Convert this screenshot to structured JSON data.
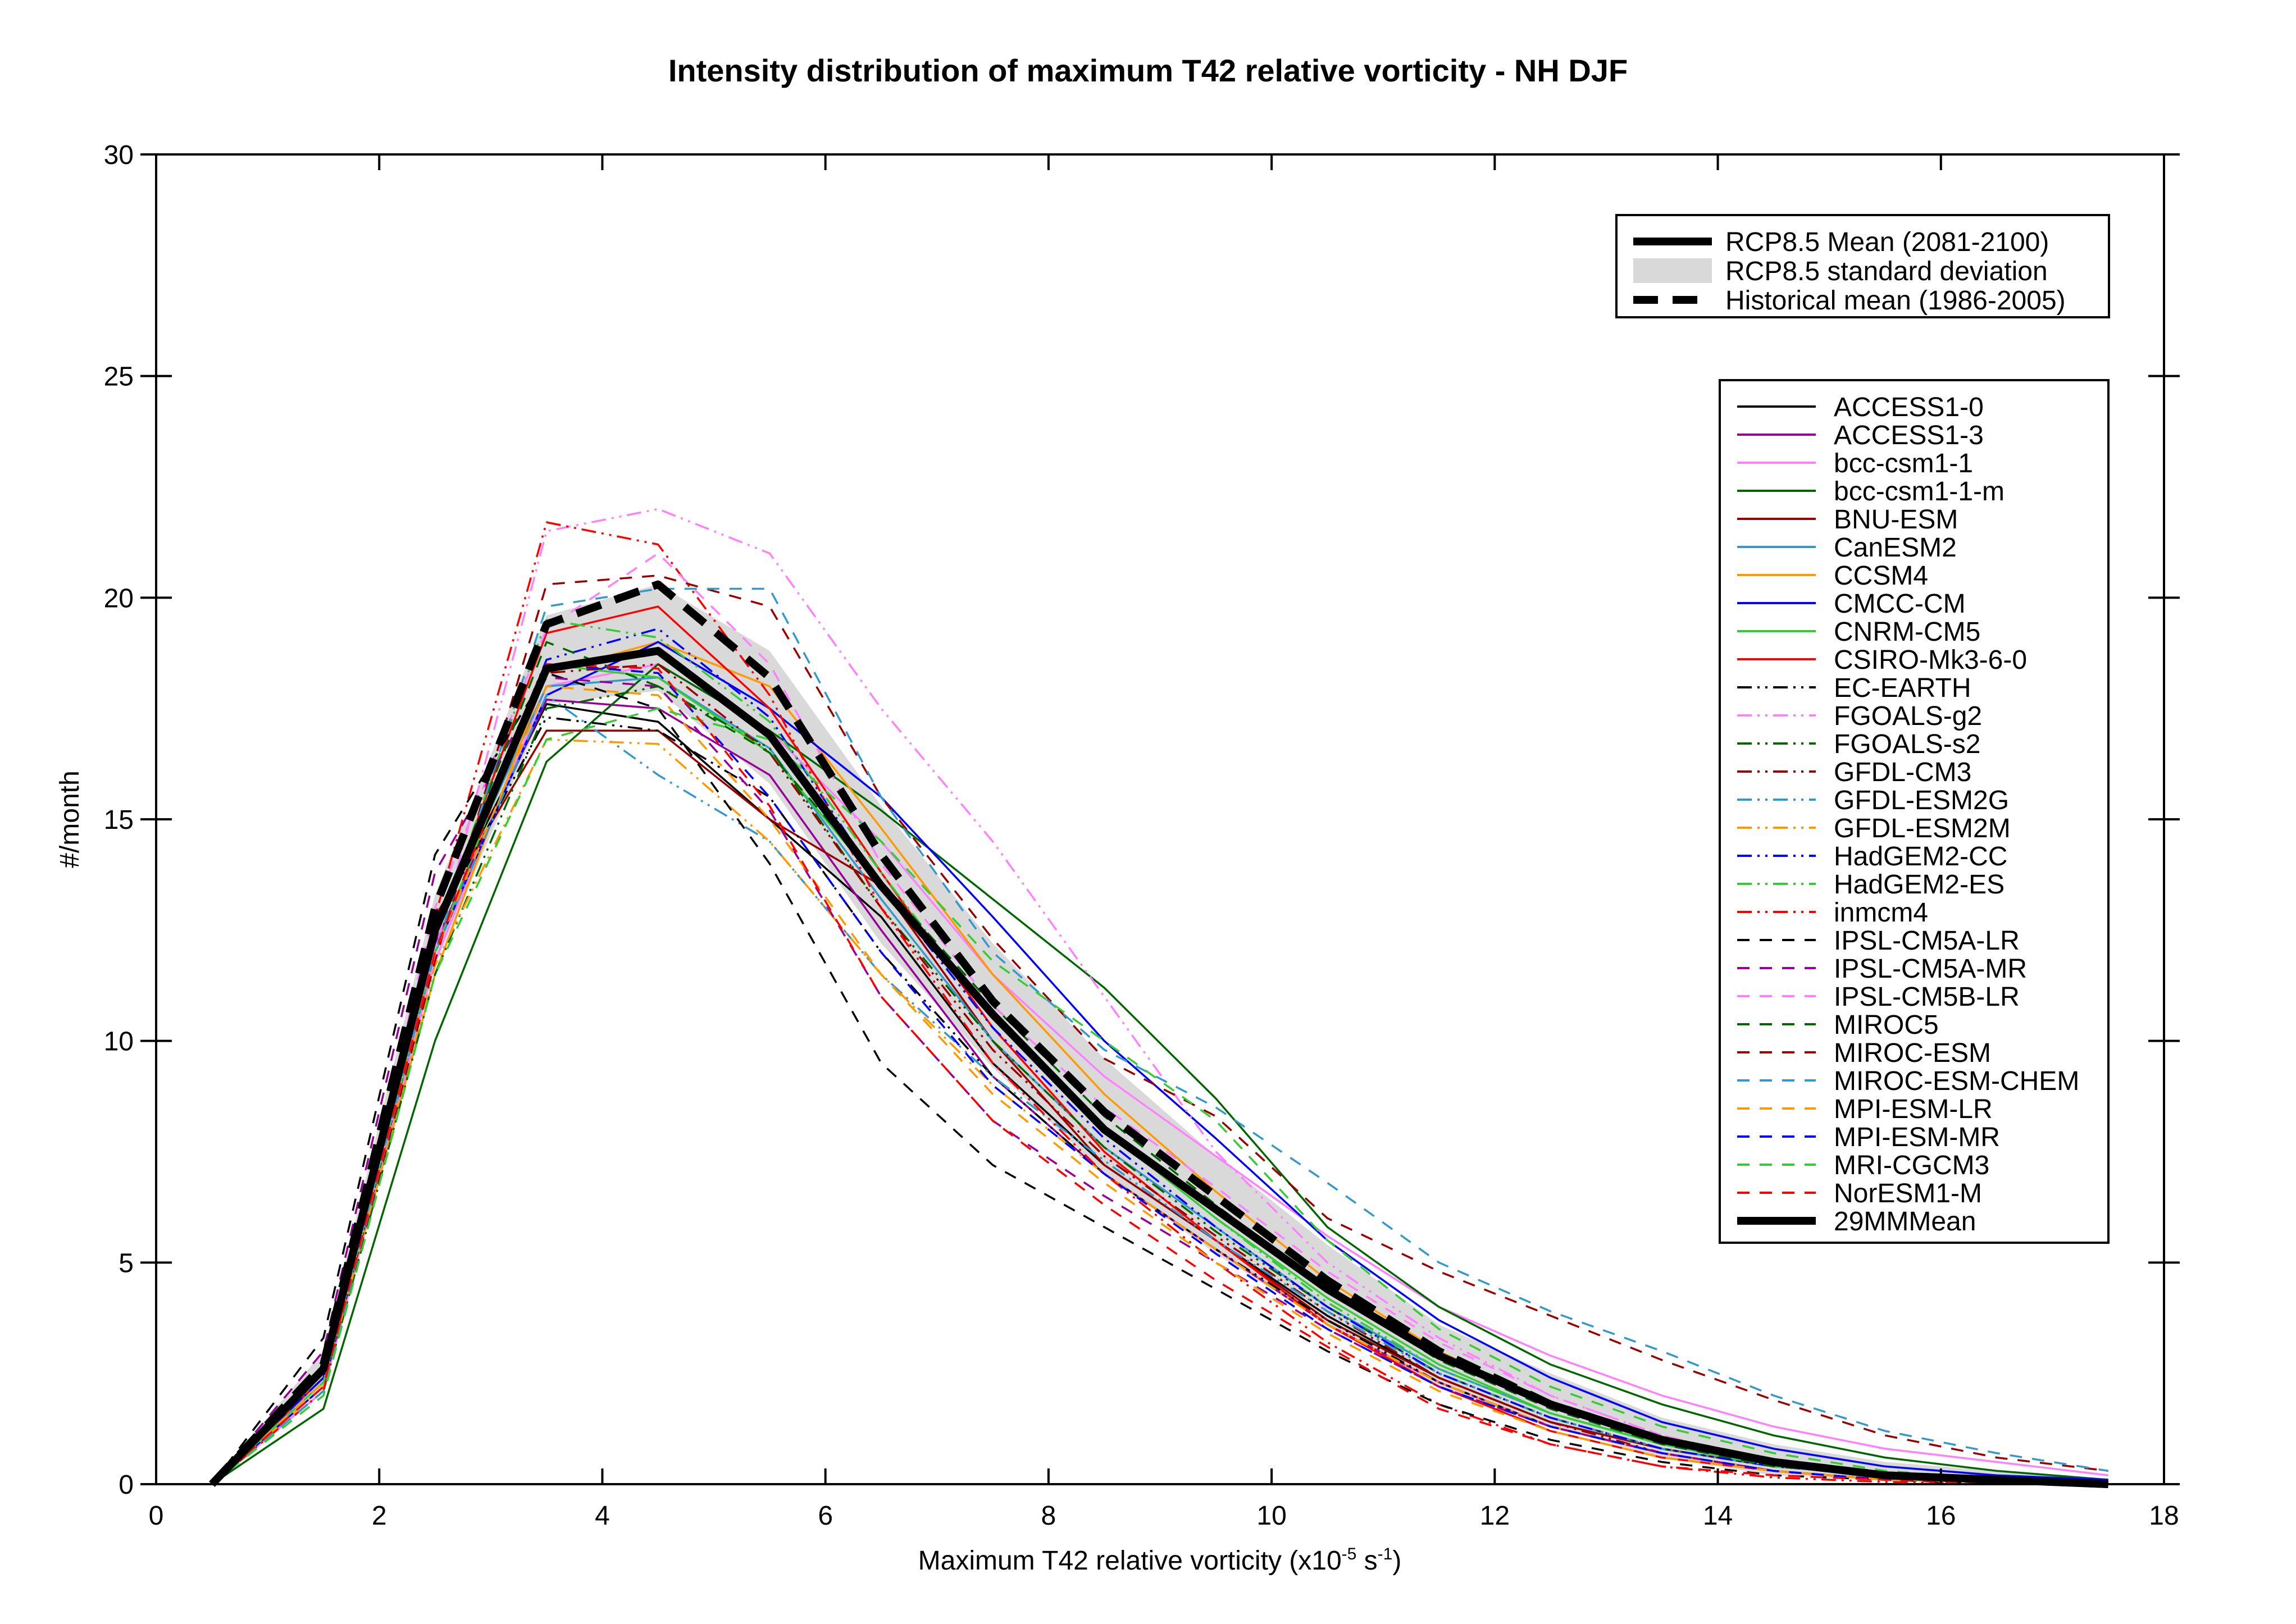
{
  "chart_data": {
    "type": "line",
    "title": "Intensity distribution of maximum T42 relative vorticity - NH DJF",
    "xlabel": "Maximum T42 relative vorticity (x10",
    "xlabel_exp": "-5",
    "xlabel_unit": "s",
    "xlabel_unit_exp": "-1",
    "xlabel_close": ")",
    "ylabel": "#/month",
    "xlim": [
      0,
      18
    ],
    "ylim": [
      0,
      30
    ],
    "xticks": [
      0,
      2,
      4,
      6,
      8,
      10,
      12,
      14,
      16,
      18
    ],
    "yticks": [
      0,
      5,
      10,
      15,
      20,
      25,
      30
    ],
    "grid": false,
    "x": [
      0.5,
      1.5,
      2.5,
      3.5,
      4.5,
      5.5,
      6.5,
      7.5,
      8.5,
      9.5,
      10.5,
      11.5,
      12.5,
      13.5,
      14.5,
      15.5,
      16.5,
      17.5
    ],
    "summary_legend": [
      {
        "label": "RCP8.5 Mean (2081-2100)",
        "style": "thick-solid"
      },
      {
        "label": "RCP8.5 standard deviation",
        "style": "band"
      },
      {
        "label": "Historical mean (1986-2005)",
        "style": "thick-dashed"
      }
    ],
    "band": {
      "name": "RCP8.5 standard deviation",
      "color": "#d9d9d9",
      "lower": [
        0,
        2.2,
        11.7,
        17.6,
        17.9,
        15.8,
        12.2,
        9.4,
        7.0,
        5.2,
        3.6,
        2.2,
        1.3,
        0.6,
        0.2,
        0.1,
        0.05,
        0
      ],
      "upper": [
        0,
        3.0,
        13.3,
        19.6,
        20.3,
        18.8,
        15.3,
        12.2,
        9.6,
        7.4,
        5.4,
        3.6,
        2.5,
        1.5,
        0.9,
        0.5,
        0.3,
        0.1
      ]
    },
    "historical_mean": {
      "name": "Historical mean (1986-2005)",
      "color": "#000000",
      "values": [
        0,
        2.7,
        13.0,
        19.4,
        20.3,
        18.2,
        14.2,
        10.9,
        8.4,
        6.5,
        4.6,
        3.0,
        1.8,
        1.0,
        0.5,
        0.2,
        0.1,
        0
      ]
    },
    "series": [
      {
        "name": "ACCESS1-0",
        "color": "#000000",
        "dash": "solid",
        "values": [
          0,
          2.6,
          12.6,
          17.6,
          17.2,
          15.0,
          12.8,
          9.5,
          7.2,
          5.5,
          3.8,
          2.4,
          1.4,
          0.8,
          0.4,
          0.2,
          0.1,
          0
        ]
      },
      {
        "name": "ACCESS1-3",
        "color": "#990099",
        "dash": "solid",
        "values": [
          0,
          2.4,
          12.2,
          17.7,
          17.5,
          16.0,
          12.5,
          9.2,
          7.0,
          5.3,
          3.6,
          2.3,
          1.3,
          0.7,
          0.3,
          0.1,
          0.05,
          0
        ]
      },
      {
        "name": "bcc-csm1-1",
        "color": "#ff80ff",
        "dash": "solid",
        "values": [
          0,
          2.1,
          11.8,
          18.0,
          18.5,
          17.0,
          14.5,
          11.5,
          9.2,
          7.4,
          5.6,
          4.0,
          2.9,
          2.0,
          1.3,
          0.8,
          0.5,
          0.2
        ]
      },
      {
        "name": "bcc-csm1-1-m",
        "color": "#006600",
        "dash": "solid",
        "values": [
          0,
          1.7,
          10.0,
          16.3,
          18.5,
          17.0,
          15.2,
          13.2,
          11.2,
          8.7,
          5.8,
          4.0,
          2.7,
          1.8,
          1.1,
          0.6,
          0.3,
          0.1
        ]
      },
      {
        "name": "BNU-ESM",
        "color": "#990000",
        "dash": "solid",
        "values": [
          0,
          2.5,
          12.8,
          17.0,
          17.0,
          15.0,
          13.5,
          10.0,
          7.2,
          5.5,
          3.7,
          2.4,
          1.4,
          0.8,
          0.4,
          0.2,
          0.1,
          0
        ]
      },
      {
        "name": "CanESM2",
        "color": "#3399cc",
        "dash": "solid",
        "values": [
          0,
          2.5,
          12.5,
          18.0,
          18.2,
          16.6,
          13.2,
          10.0,
          7.6,
          5.8,
          4.0,
          2.6,
          1.6,
          0.9,
          0.5,
          0.2,
          0.1,
          0
        ]
      },
      {
        "name": "CCSM4",
        "color": "#ff9900",
        "dash": "solid",
        "values": [
          0,
          2.3,
          11.5,
          18.3,
          19.0,
          18.0,
          14.8,
          11.5,
          8.8,
          6.6,
          4.6,
          3.0,
          1.8,
          1.0,
          0.5,
          0.2,
          0.1,
          0
        ]
      },
      {
        "name": "CMCC-CM",
        "color": "#0000ff",
        "dash": "solid",
        "values": [
          0,
          2.2,
          12.0,
          17.8,
          19.0,
          17.5,
          15.5,
          12.8,
          10.0,
          7.8,
          5.5,
          3.7,
          2.4,
          1.4,
          0.8,
          0.4,
          0.2,
          0.1
        ]
      },
      {
        "name": "CNRM-CM5",
        "color": "#33cc33",
        "dash": "solid",
        "values": [
          0,
          2.3,
          12.0,
          18.5,
          18.2,
          16.5,
          13.5,
          10.5,
          8.0,
          6.0,
          4.2,
          2.7,
          1.6,
          0.9,
          0.4,
          0.2,
          0.1,
          0
        ]
      },
      {
        "name": "CSIRO-Mk3-6-0",
        "color": "#ff0000",
        "dash": "solid",
        "values": [
          0,
          2.4,
          12.4,
          19.2,
          19.8,
          17.5,
          13.8,
          10.3,
          7.5,
          5.5,
          3.6,
          2.2,
          1.2,
          0.6,
          0.3,
          0.1,
          0.05,
          0
        ]
      },
      {
        "name": "EC-EARTH",
        "color": "#000000",
        "dash": "dashdotdot",
        "values": [
          0,
          2.7,
          12.6,
          17.3,
          17.0,
          15.5,
          12.0,
          9.2,
          7.0,
          5.3,
          3.7,
          2.3,
          1.3,
          0.7,
          0.3,
          0.1,
          0.05,
          0
        ]
      },
      {
        "name": "FGOALS-g2",
        "color": "#ff80ff",
        "dash": "dashdotdot",
        "values": [
          0,
          2.2,
          12.0,
          21.5,
          22.0,
          21.0,
          17.5,
          14.5,
          11.0,
          7.5,
          5.0,
          3.3,
          2.0,
          1.1,
          0.5,
          0.2,
          0.1,
          0
        ]
      },
      {
        "name": "FGOALS-s2",
        "color": "#006600",
        "dash": "dashdotdot",
        "values": [
          0,
          2.1,
          11.5,
          17.5,
          18.0,
          16.6,
          13.0,
          10.0,
          7.6,
          5.7,
          4.0,
          2.5,
          1.5,
          0.8,
          0.4,
          0.2,
          0.1,
          0
        ]
      },
      {
        "name": "GFDL-CM3",
        "color": "#990000",
        "dash": "dashdotdot",
        "values": [
          0,
          2.5,
          12.4,
          18.3,
          18.5,
          16.5,
          13.0,
          9.8,
          7.4,
          5.6,
          3.9,
          2.4,
          1.4,
          0.7,
          0.3,
          0.1,
          0.05,
          0
        ]
      },
      {
        "name": "GFDL-ESM2G",
        "color": "#3399cc",
        "dash": "dashdotdot",
        "values": [
          0,
          2.3,
          12.0,
          17.8,
          16.0,
          14.5,
          11.5,
          9.2,
          7.3,
          5.5,
          3.9,
          2.5,
          1.5,
          0.8,
          0.4,
          0.2,
          0.1,
          0
        ]
      },
      {
        "name": "GFDL-ESM2M",
        "color": "#ff9900",
        "dash": "dashdotdot",
        "values": [
          0,
          2.2,
          11.7,
          16.8,
          16.7,
          14.5,
          11.5,
          9.0,
          7.0,
          5.3,
          3.6,
          2.3,
          1.3,
          0.7,
          0.3,
          0.1,
          0.05,
          0
        ]
      },
      {
        "name": "HadGEM2-CC",
        "color": "#0000ff",
        "dash": "dashdotdot",
        "values": [
          0,
          2.4,
          12.5,
          18.6,
          19.3,
          17.3,
          13.5,
          10.3,
          7.8,
          5.8,
          4.0,
          2.5,
          1.5,
          0.8,
          0.4,
          0.2,
          0.1,
          0
        ]
      },
      {
        "name": "HadGEM2-ES",
        "color": "#33cc33",
        "dash": "dashdotdot",
        "values": [
          0,
          2.3,
          12.3,
          19.5,
          19.1,
          17.2,
          13.8,
          10.5,
          8.0,
          6.0,
          4.1,
          2.6,
          1.6,
          0.9,
          0.4,
          0.2,
          0.1,
          0
        ]
      },
      {
        "name": "inmcm4",
        "color": "#ff0000",
        "dash": "dashdotdot",
        "values": [
          0,
          2.1,
          12.8,
          21.7,
          21.2,
          17.8,
          13.0,
          9.5,
          7.0,
          5.0,
          3.2,
          1.8,
          0.9,
          0.4,
          0.15,
          0.05,
          0,
          0
        ]
      },
      {
        "name": "IPSL-CM5A-LR",
        "color": "#000000",
        "dash": "dashed",
        "values": [
          0,
          3.3,
          14.2,
          18.3,
          17.5,
          14.0,
          9.5,
          7.2,
          5.8,
          4.4,
          3.0,
          1.8,
          1.0,
          0.5,
          0.2,
          0.1,
          0,
          0
        ]
      },
      {
        "name": "IPSL-CM5A-MR",
        "color": "#990099",
        "dash": "dashed",
        "values": [
          0,
          3.0,
          13.8,
          18.2,
          18.0,
          15.2,
          11.0,
          8.2,
          6.5,
          5.0,
          3.5,
          2.2,
          1.3,
          0.7,
          0.3,
          0.1,
          0.05,
          0
        ]
      },
      {
        "name": "IPSL-CM5B-LR",
        "color": "#ff80ff",
        "dash": "dashed",
        "values": [
          0,
          2.5,
          13.0,
          19.3,
          21.0,
          18.5,
          14.0,
          10.8,
          8.5,
          6.7,
          4.8,
          3.2,
          2.0,
          1.1,
          0.5,
          0.2,
          0.1,
          0
        ]
      },
      {
        "name": "MIROC5",
        "color": "#006600",
        "dash": "dashed",
        "values": [
          0,
          2.3,
          12.5,
          19.0,
          18.0,
          16.5,
          13.6,
          10.8,
          8.3,
          6.3,
          4.4,
          2.8,
          1.7,
          0.9,
          0.4,
          0.2,
          0.1,
          0
        ]
      },
      {
        "name": "MIROC-ESM",
        "color": "#990000",
        "dash": "dashed",
        "values": [
          0,
          2.1,
          11.8,
          20.3,
          20.5,
          19.8,
          15.5,
          12.3,
          9.6,
          8.3,
          6.0,
          4.8,
          3.8,
          2.8,
          1.9,
          1.1,
          0.6,
          0.3
        ]
      },
      {
        "name": "MIROC-ESM-CHEM",
        "color": "#3399cc",
        "dash": "dashed",
        "values": [
          0,
          2.1,
          12.0,
          19.8,
          20.2,
          20.2,
          15.5,
          12.0,
          9.8,
          8.5,
          6.8,
          5.0,
          3.9,
          3.0,
          2.0,
          1.2,
          0.7,
          0.3
        ]
      },
      {
        "name": "MPI-ESM-LR",
        "color": "#ff9900",
        "dash": "dashed",
        "values": [
          0,
          2.3,
          12.0,
          18.0,
          17.8,
          15.0,
          11.5,
          8.8,
          6.8,
          5.0,
          3.4,
          2.1,
          1.2,
          0.6,
          0.3,
          0.1,
          0.05,
          0
        ]
      },
      {
        "name": "MPI-ESM-MR",
        "color": "#0000ff",
        "dash": "dashed",
        "values": [
          0,
          2.4,
          12.4,
          18.5,
          18.3,
          15.5,
          12.0,
          9.0,
          7.0,
          5.2,
          3.5,
          2.2,
          1.3,
          0.7,
          0.3,
          0.1,
          0.05,
          0
        ]
      },
      {
        "name": "MRI-CGCM3",
        "color": "#33cc33",
        "dash": "dashed",
        "values": [
          0,
          2.0,
          11.5,
          16.8,
          17.5,
          16.8,
          14.5,
          11.8,
          10.0,
          8.2,
          5.5,
          3.5,
          2.2,
          1.3,
          0.7,
          0.3,
          0.1,
          0
        ]
      },
      {
        "name": "NorESM1-M",
        "color": "#ff0000",
        "dash": "dashed",
        "values": [
          0,
          2.2,
          12.0,
          18.5,
          18.4,
          15.3,
          11.0,
          8.2,
          6.3,
          4.6,
          3.1,
          1.7,
          0.9,
          0.4,
          0.2,
          0.1,
          0,
          0
        ]
      },
      {
        "name": "29MMMean",
        "color": "#000000",
        "dash": "thick",
        "values": [
          0,
          2.6,
          12.5,
          18.4,
          18.8,
          16.9,
          13.5,
          10.6,
          8.0,
          6.2,
          4.4,
          2.9,
          1.8,
          1.0,
          0.5,
          0.2,
          0.1,
          0
        ]
      }
    ]
  }
}
